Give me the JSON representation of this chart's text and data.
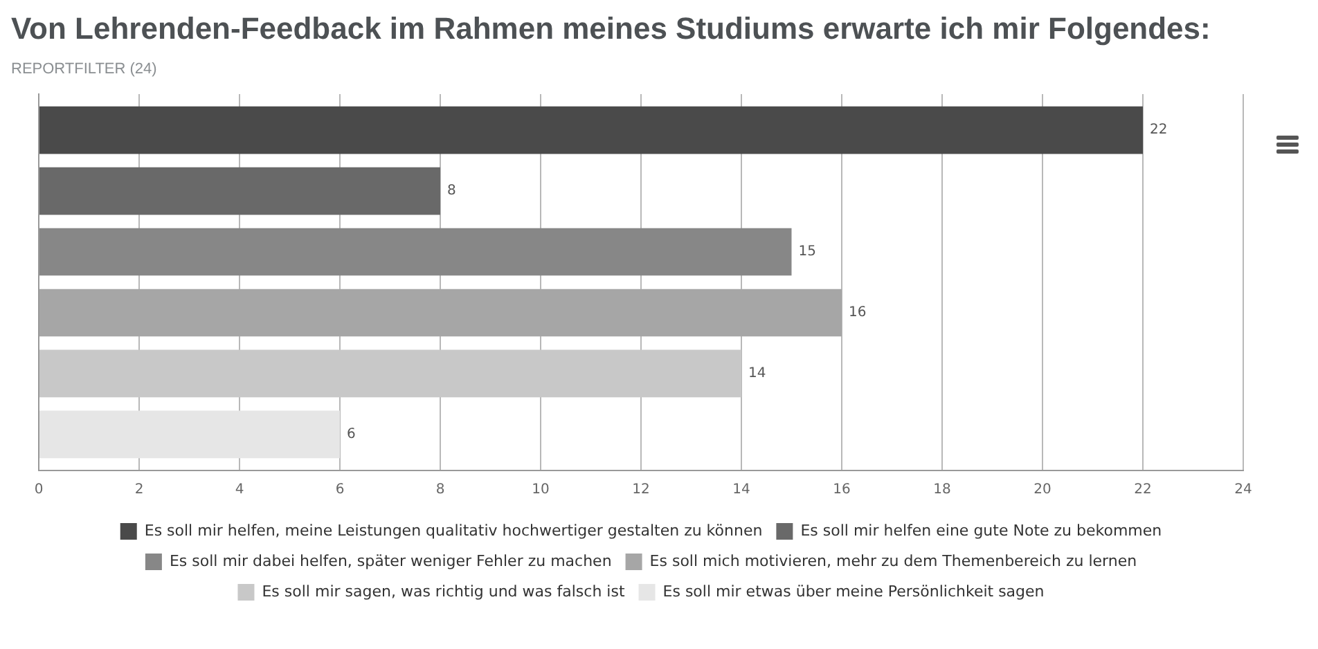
{
  "chart_data": {
    "type": "bar",
    "orientation": "horizontal",
    "title": "Von Lehrenden-Feedback im Rahmen meines Studiums erwarte ich mir Folgendes:",
    "subtitle": "REPORTFILTER (24)",
    "categories": [
      null
    ],
    "series": [
      {
        "name": "Es soll mir helfen, meine Leistungen qualitativ hochwertiger gestalten zu können",
        "color": "#4a4a4a",
        "values": [
          22
        ]
      },
      {
        "name": "Es soll mir helfen eine gute Note zu bekommen",
        "color": "#696969",
        "values": [
          8
        ]
      },
      {
        "name": "Es soll mir dabei helfen, später weniger Fehler zu machen",
        "color": "#878787",
        "values": [
          15
        ]
      },
      {
        "name": "Es soll mich motivieren, mehr zu dem Themenbereich zu lernen",
        "color": "#a6a6a6",
        "values": [
          16
        ]
      },
      {
        "name": "Es soll mir sagen, was richtig und was falsch ist",
        "color": "#c8c8c8",
        "values": [
          14
        ]
      },
      {
        "name": "Es soll mir etwas über meine Persönlichkeit sagen",
        "color": "#e6e6e6",
        "values": [
          6
        ]
      }
    ],
    "xlim": [
      0,
      24
    ],
    "xticks": [
      0,
      2,
      4,
      6,
      8,
      10,
      12,
      14,
      16,
      18,
      20,
      22,
      24
    ],
    "grid": "x",
    "tick_labels": "x",
    "legend": "bottom",
    "data_labels": true
  }
}
